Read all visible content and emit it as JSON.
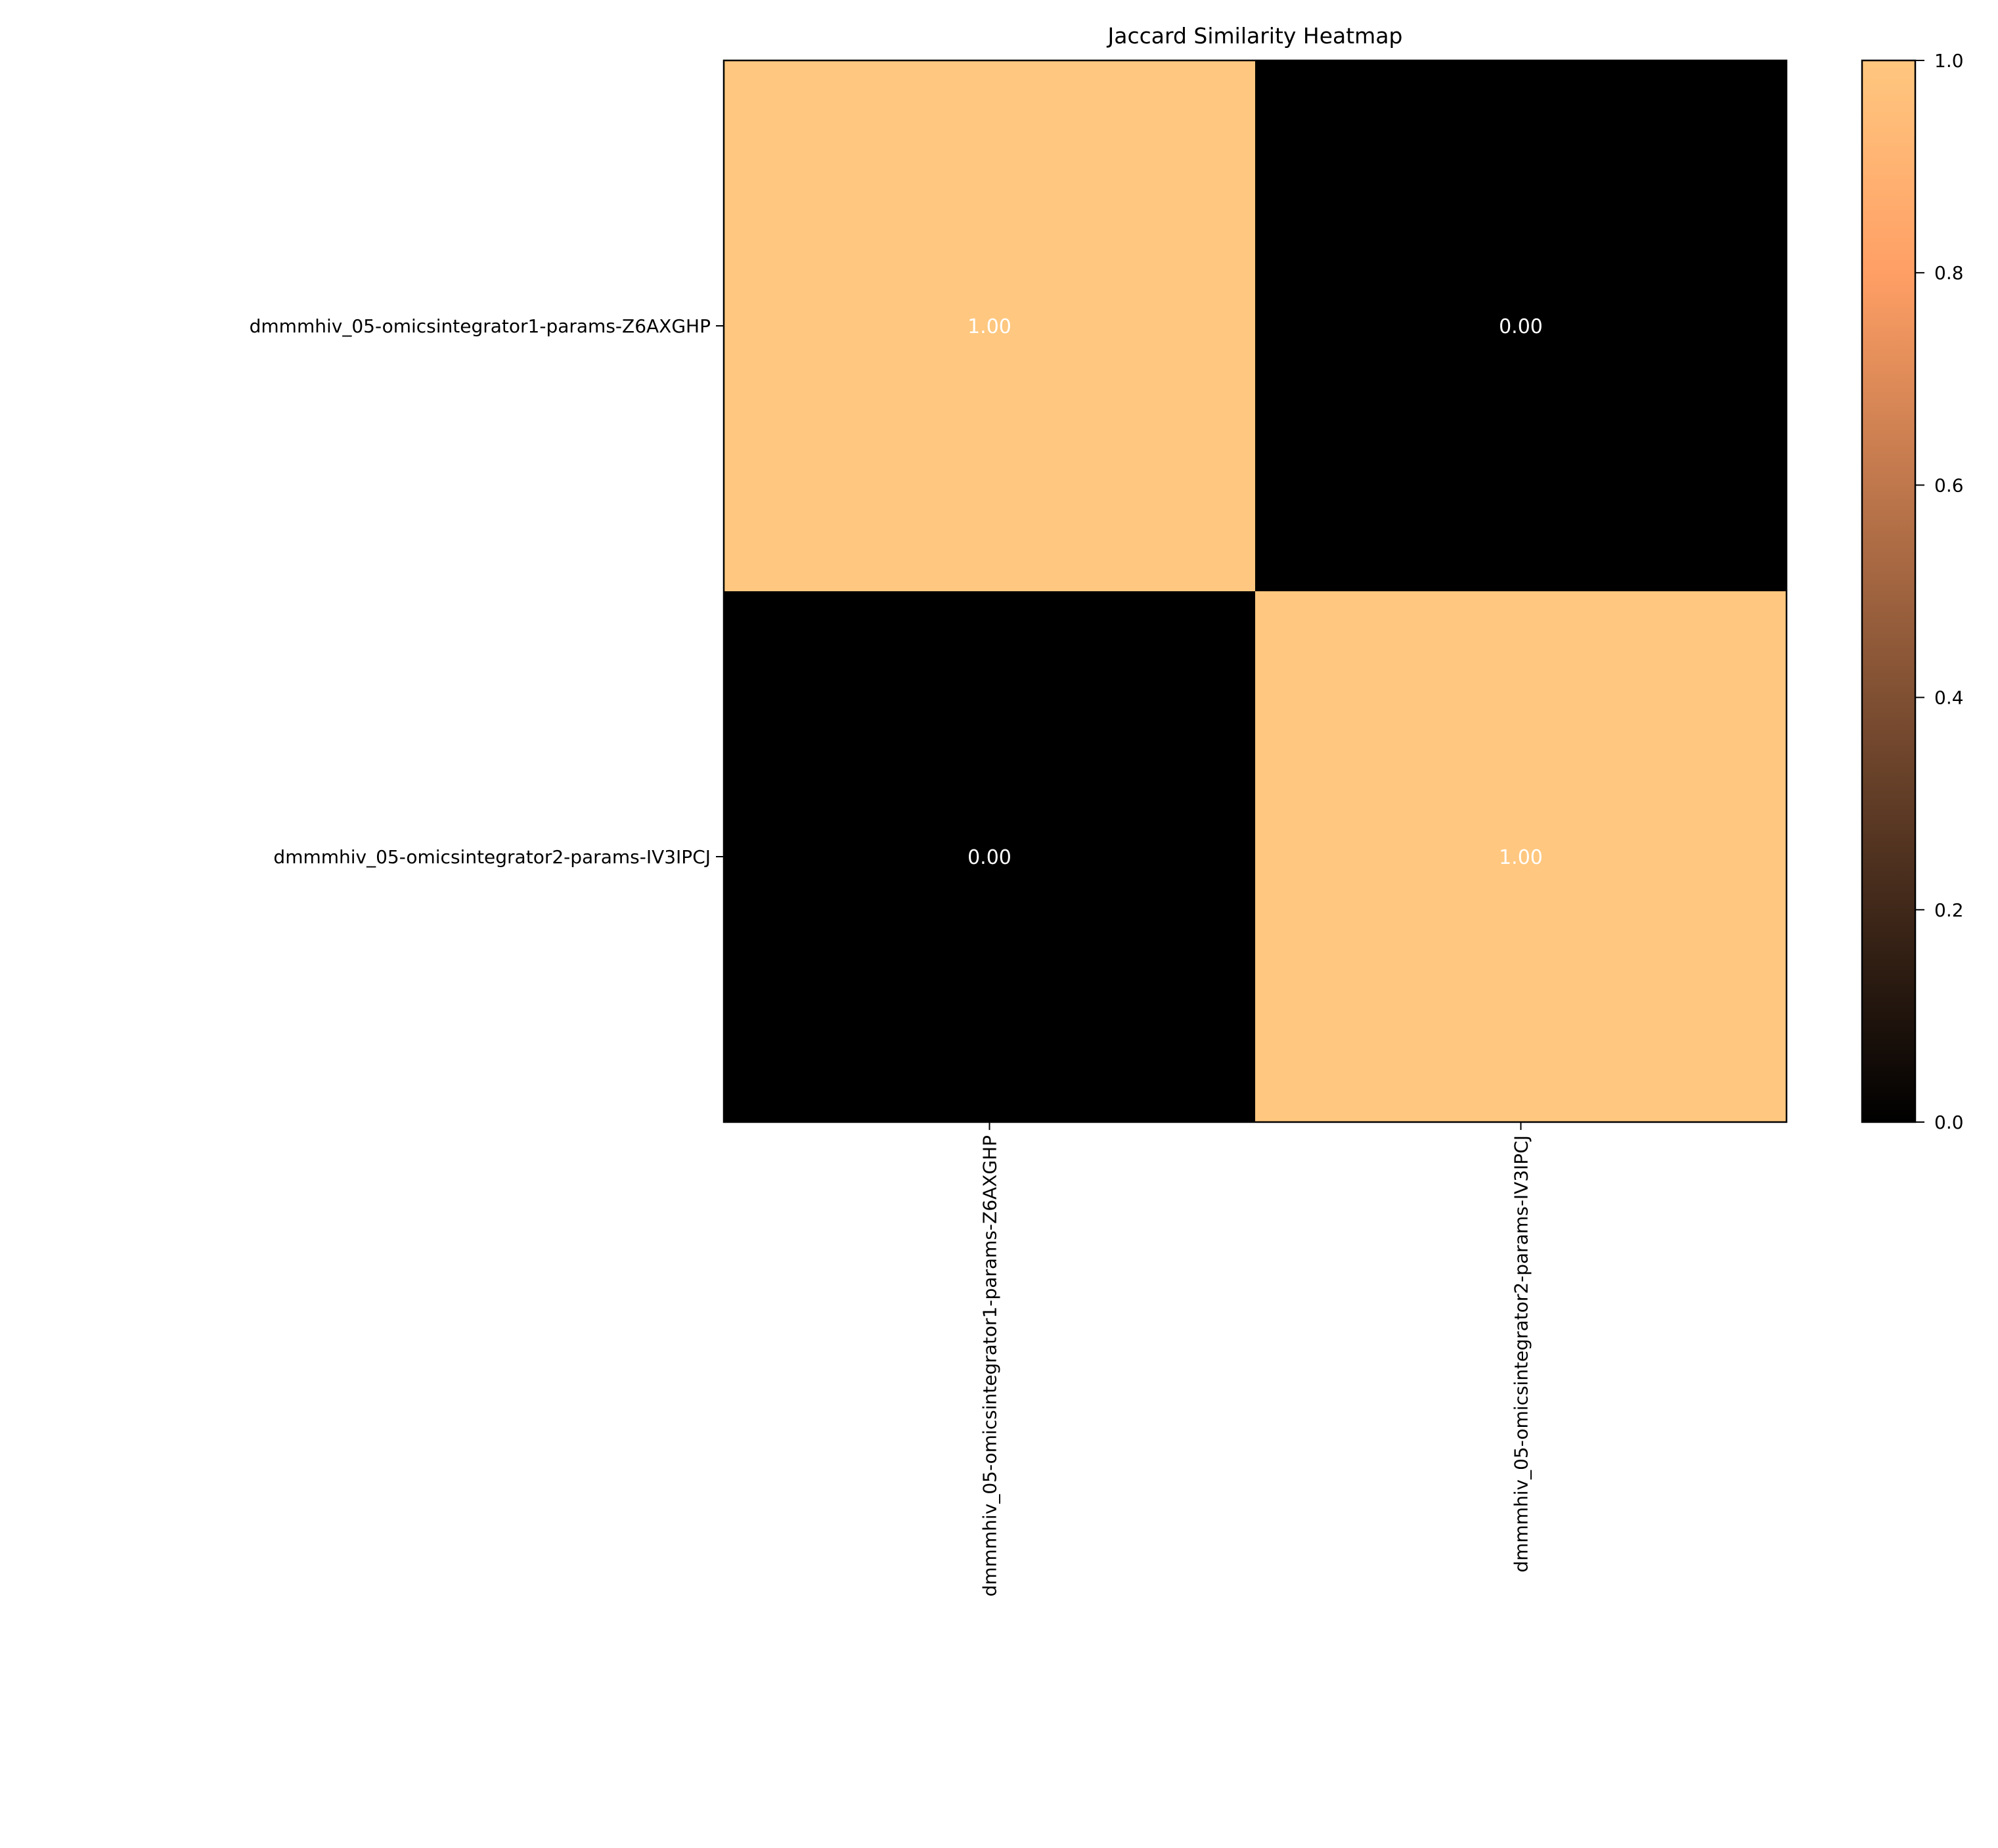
{
  "chart_data": {
    "type": "heatmap",
    "title": "Jaccard Similarity Heatmap",
    "rows": [
      "dmmmhiv_05-omicsintegrator1-params-Z6AXGHP",
      "dmmmhiv_05-omicsintegrator2-params-IV3IPCJ"
    ],
    "columns": [
      "dmmmhiv_05-omicsintegrator1-params-Z6AXGHP",
      "dmmmhiv_05-omicsintegrator2-params-IV3IPCJ"
    ],
    "values": [
      [
        1.0,
        0.0
      ],
      [
        0.0,
        1.0
      ]
    ],
    "annotations": [
      [
        "1.00",
        "0.00"
      ],
      [
        "0.00",
        "1.00"
      ]
    ],
    "colormap": "copper",
    "vmin": 0.0,
    "vmax": 1.0,
    "colorbar_ticks": [
      "0.0",
      "0.2",
      "0.4",
      "0.6",
      "0.8",
      "1.0"
    ],
    "xlabel": "",
    "ylabel": ""
  }
}
